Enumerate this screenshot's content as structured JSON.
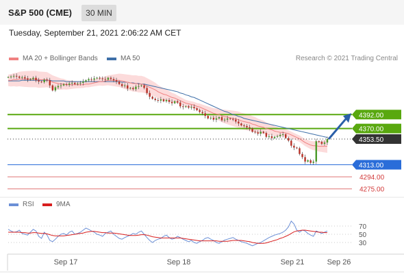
{
  "header": {
    "title": "S&P 500 (CME)",
    "timeframe": "30 MIN"
  },
  "datetime": "Tuesday, September 21, 2021 2:06:22 AM CET",
  "legend": {
    "ma20_label": "MA 20 + Bollinger Bands",
    "ma50_label": "MA 50",
    "rsi_label": "RSI",
    "rsi_ma_label": "9MA",
    "copyright": "Research © 2021 Trading Central"
  },
  "colors": {
    "ma20": "#f08080",
    "ma50": "#3e6fa8",
    "bollinger": "#fbd5d5",
    "up": "#4a9a2a",
    "down": "#b83228",
    "green_level": "#59a80f",
    "blue_level": "#2a6dd9",
    "red_level": "#d23a3a",
    "last_price": "#333333",
    "rsi": "#6b8fd6",
    "rsi_ma": "#d81e1e",
    "arrow": "#2a5fa8"
  },
  "chart_data": [
    {
      "type": "candlestick",
      "title": "",
      "x_ticks": [
        "Sep 17",
        "Sep 18",
        "Sep 21",
        "Sep 26"
      ],
      "ylim": [
        4265,
        4470
      ],
      "levels": [
        {
          "value": 4392.0,
          "label": "4392.00",
          "kind": "resistance-2"
        },
        {
          "value": 4370.0,
          "label": "4370.00",
          "kind": "resistance-1"
        },
        {
          "value": 4353.5,
          "label": "4353.50",
          "kind": "last-price"
        },
        {
          "value": 4313.0,
          "label": "4313.00",
          "kind": "pivot"
        },
        {
          "value": 4294.0,
          "label": "4294.00",
          "kind": "support-1"
        },
        {
          "value": 4275.0,
          "label": "4275.00",
          "kind": "support-2"
        }
      ],
      "close": [
        4451,
        4452,
        4453,
        4452,
        4450,
        4451,
        4449,
        4447,
        4448,
        4450,
        4446,
        4444,
        4443,
        4447,
        4446,
        4438,
        4430,
        4435,
        4437,
        4438,
        4440,
        4439,
        4441,
        4442,
        4440,
        4441,
        4442,
        4444,
        4446,
        4448,
        4447,
        4449,
        4450,
        4449,
        4448,
        4447,
        4450,
        4448,
        4446,
        4444,
        4440,
        4437,
        4438,
        4433,
        4434,
        4432,
        4436,
        4437,
        4438,
        4434,
        4426,
        4420,
        4417,
        4415,
        4414,
        4416,
        4413,
        4415,
        4412,
        4410,
        4413,
        4411,
        4405,
        4404,
        4405,
        4403,
        4404,
        4402,
        4399,
        4396,
        4394,
        4390,
        4386,
        4387,
        4384,
        4386,
        4388,
        4383,
        4384,
        4386,
        4385,
        4384,
        4381,
        4378,
        4375,
        4374,
        4372,
        4370,
        4365,
        4364,
        4362,
        4365,
        4363,
        4357,
        4358,
        4355,
        4357,
        4358,
        4360,
        4361,
        4355,
        4351,
        4343,
        4340,
        4339,
        4330,
        4325,
        4318,
        4320,
        4316,
        4318,
        4350,
        4349,
        4346,
        4348,
        4353.5
      ],
      "ma20": [
        4446,
        4446,
        4447,
        4447,
        4448,
        4448,
        4448,
        4448,
        4448,
        4448,
        4448,
        4447,
        4447,
        4447,
        4447,
        4445,
        4443,
        4442,
        4441,
        4440,
        4440,
        4439,
        4439,
        4439,
        4439,
        4439,
        4439,
        4439,
        4440,
        4440,
        4441,
        4442,
        4443,
        4444,
        4444,
        4445,
        4446,
        4446,
        4446,
        4446,
        4446,
        4445,
        4444,
        4443,
        4442,
        4441,
        4441,
        4440,
        4440,
        4439,
        4437,
        4435,
        4433,
        4431,
        4428,
        4426,
        4424,
        4423,
        4421,
        4419,
        4418,
        4416,
        4414,
        4412,
        4410,
        4409,
        4408,
        4407,
        4405,
        4404,
        4402,
        4400,
        4398,
        4396,
        4394,
        4393,
        4392,
        4390,
        4389,
        4388,
        4387,
        4386,
        4385,
        4384,
        4382,
        4381,
        4380,
        4379,
        4377,
        4376,
        4374,
        4373,
        4372,
        4370,
        4369,
        4368,
        4366,
        4365,
        4364,
        4364,
        4363,
        4362,
        4360,
        4358,
        4356,
        4354,
        4351,
        4348,
        4346,
        4344,
        4343,
        4343,
        4342,
        4342,
        4342,
        4342
      ],
      "ma50": [
        4445,
        4445,
        4445,
        4445,
        4445,
        4446,
        4446,
        4446,
        4446,
        4446,
        4446,
        4446,
        4446,
        4446,
        4446,
        4446,
        4445,
        4445,
        4445,
        4445,
        4445,
        4444,
        4444,
        4444,
        4444,
        4444,
        4444,
        4444,
        4444,
        4444,
        4444,
        4444,
        4444,
        4444,
        4444,
        4444,
        4444,
        4444,
        4444,
        4444,
        4444,
        4443,
        4443,
        4443,
        4442,
        4442,
        4441,
        4441,
        4440,
        4440,
        4439,
        4438,
        4437,
        4436,
        4435,
        4434,
        4433,
        4432,
        4431,
        4430,
        4429,
        4428,
        4426,
        4425,
        4423,
        4422,
        4420,
        4419,
        4417,
        4415,
        4413,
        4411,
        4409,
        4407,
        4405,
        4403,
        4401,
        4399,
        4397,
        4396,
        4394,
        4392,
        4391,
        4389,
        4388,
        4386,
        4385,
        4384,
        4383,
        4382,
        4381,
        4380,
        4379,
        4378,
        4377,
        4376,
        4375,
        4374,
        4373,
        4372,
        4371,
        4370,
        4369,
        4368,
        4367,
        4366,
        4365,
        4364,
        4363,
        4362,
        4361,
        4360,
        4359,
        4358,
        4357,
        4356
      ]
    },
    {
      "type": "line",
      "title": "",
      "ylim": [
        0,
        100
      ],
      "y_ticks": [
        "70",
        "50",
        "30"
      ],
      "rsi": [
        62,
        58,
        55,
        56,
        60,
        52,
        50,
        48,
        55,
        62,
        58,
        45,
        40,
        55,
        48,
        35,
        32,
        38,
        45,
        50,
        52,
        48,
        55,
        58,
        50,
        52,
        55,
        60,
        65,
        62,
        58,
        55,
        50,
        48,
        45,
        52,
        55,
        58,
        50,
        45,
        40,
        38,
        42,
        45,
        48,
        52,
        50,
        55,
        58,
        50,
        42,
        35,
        30,
        35,
        38,
        40,
        45,
        48,
        42,
        38,
        40,
        45,
        42,
        38,
        35,
        32,
        35,
        30,
        28,
        32,
        35,
        40,
        42,
        38,
        35,
        30,
        28,
        32,
        36,
        38,
        40,
        42,
        38,
        35,
        32,
        30,
        28,
        25,
        22,
        25,
        28,
        30,
        34,
        38,
        42,
        45,
        48,
        50,
        52,
        55,
        60,
        68,
        82,
        75,
        60,
        55,
        60,
        58,
        52,
        48,
        45,
        58,
        55,
        52,
        55,
        58
      ],
      "rsi_ma": [
        55,
        55,
        55,
        55,
        55,
        54,
        54,
        53,
        53,
        54,
        54,
        53,
        52,
        52,
        51,
        49,
        47,
        46,
        46,
        46,
        46,
        47,
        48,
        49,
        50,
        51,
        52,
        53,
        55,
        56,
        57,
        57,
        56,
        55,
        54,
        54,
        53,
        53,
        53,
        52,
        51,
        50,
        49,
        48,
        47,
        47,
        47,
        48,
        49,
        49,
        48,
        46,
        44,
        43,
        42,
        41,
        41,
        41,
        41,
        41,
        41,
        41,
        41,
        40,
        39,
        38,
        37,
        36,
        35,
        34,
        34,
        34,
        34,
        34,
        34,
        34,
        33,
        33,
        33,
        33,
        34,
        35,
        35,
        35,
        35,
        34,
        33,
        32,
        30,
        29,
        28,
        28,
        28,
        29,
        31,
        33,
        35,
        37,
        40,
        42,
        45,
        48,
        52,
        56,
        58,
        59,
        60,
        60,
        59,
        58,
        57,
        56,
        55,
        55,
        54,
        54
      ]
    }
  ]
}
